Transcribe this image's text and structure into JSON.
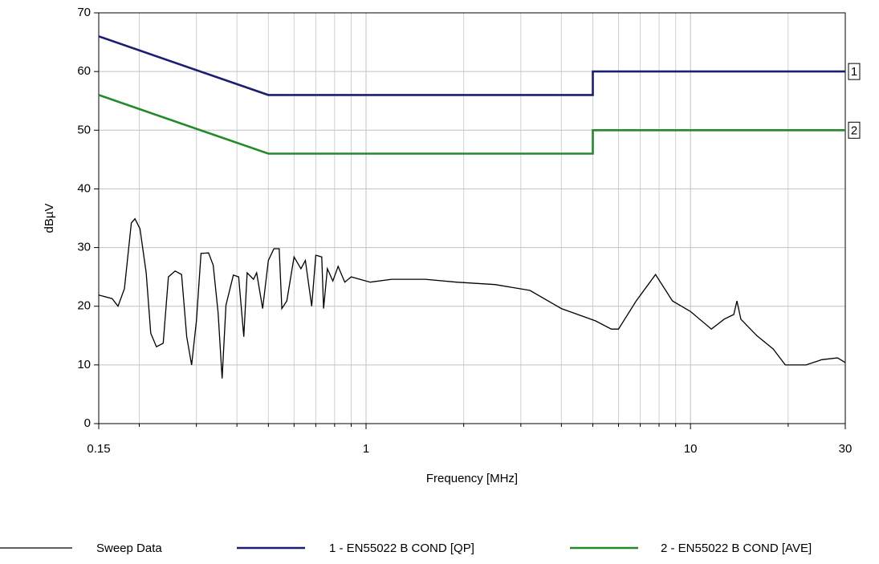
{
  "chart_data": {
    "type": "line",
    "x_label": "Frequency [MHz]",
    "y_label": "dBµV",
    "xscale": "log",
    "xlim": [
      0.15,
      30
    ],
    "ylim": [
      0,
      70
    ],
    "xticks": [
      0.15,
      1,
      10,
      30
    ],
    "xminor": [
      0.2,
      0.3,
      0.4,
      0.5,
      0.6,
      0.7,
      0.8,
      0.9,
      2,
      3,
      4,
      5,
      6,
      7,
      8,
      9,
      20
    ],
    "yticks": [
      0,
      10,
      20,
      30,
      40,
      50,
      60,
      70
    ],
    "grid": true,
    "legend": "bottom",
    "series": [
      {
        "name": "Sweep Data",
        "color": "#000000",
        "x": [
          0.15,
          0.165,
          0.172,
          0.18,
          0.189,
          0.194,
          0.201,
          0.21,
          0.217,
          0.226,
          0.237,
          0.246,
          0.258,
          0.27,
          0.28,
          0.29,
          0.3,
          0.31,
          0.327,
          0.338,
          0.35,
          0.36,
          0.37,
          0.39,
          0.405,
          0.42,
          0.43,
          0.45,
          0.46,
          0.48,
          0.5,
          0.52,
          0.54,
          0.55,
          0.57,
          0.6,
          0.63,
          0.65,
          0.68,
          0.7,
          0.73,
          0.74,
          0.76,
          0.79,
          0.82,
          0.86,
          0.9,
          1.03,
          1.2,
          1.52,
          1.9,
          2.5,
          3.2,
          4,
          5.1,
          5.7,
          6,
          6.8,
          7.8,
          8.8,
          10,
          11.6,
          12.7,
          13.6,
          13.9,
          14.3,
          16,
          18,
          19.6,
          22.7,
          25.4,
          28.4,
          30
        ],
        "values": [
          21.9,
          21.3,
          20,
          23,
          34.2,
          34.9,
          33.2,
          25.7,
          15.4,
          13.1,
          13.7,
          25,
          26,
          25.4,
          14.8,
          10,
          17.5,
          29,
          29.1,
          27,
          18.9,
          7.7,
          20.2,
          25.3,
          25,
          14.8,
          25.7,
          24.6,
          25.7,
          19.6,
          27.8,
          29.8,
          29.8,
          19.6,
          20.9,
          28.4,
          26.4,
          27.8,
          20,
          28.7,
          28.4,
          19.6,
          26.4,
          24.3,
          26.8,
          24.1,
          25,
          24.1,
          24.6,
          24.6,
          24.1,
          23.7,
          22.7,
          19.6,
          17.5,
          16.1,
          16.1,
          20.9,
          25.4,
          20.9,
          19.1,
          16.1,
          17.8,
          18.6,
          20.9,
          17.8,
          15,
          12.7,
          10,
          10,
          10.9,
          11.2,
          10.4
        ]
      },
      {
        "name": "1 - EN55022 B COND [QP]",
        "color": "#1a1f71",
        "end_label": "1",
        "x": [
          0.15,
          0.5,
          5,
          5,
          30
        ],
        "values": [
          66,
          56,
          56,
          60,
          60
        ]
      },
      {
        "name": "2 - EN55022 B COND [AVE]",
        "color": "#238a2a",
        "end_label": "2",
        "x": [
          0.15,
          0.5,
          5,
          5,
          30
        ],
        "values": [
          56,
          46,
          46,
          50,
          50
        ]
      }
    ]
  }
}
